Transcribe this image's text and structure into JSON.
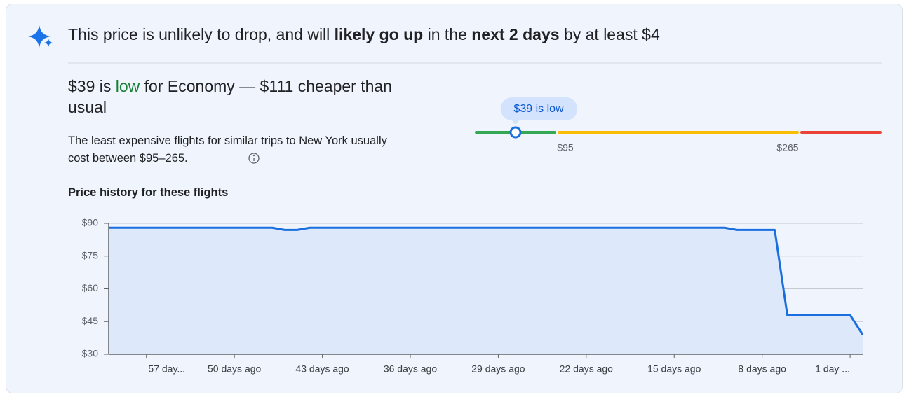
{
  "headline": [
    {
      "text": "This price is unlikely to drop, and will ",
      "bold": false
    },
    {
      "text": "likely go up",
      "bold": true
    },
    {
      "text": " in the ",
      "bold": false
    },
    {
      "text": "next 2 days",
      "bold": true
    },
    {
      "text": " by at least $4",
      "bold": false
    }
  ],
  "summary": [
    {
      "text": "$39 is ",
      "color": "#202124"
    },
    {
      "text": "low",
      "color": "#188038"
    },
    {
      "text": " for Economy — $111 cheaper than usual",
      "color": "#202124"
    }
  ],
  "description": "The least expensive flights for similar trips to New York usually cost between $95–265.",
  "price_range": {
    "marker_label": "$39 is low",
    "tick_labels": [
      "$95",
      "$265"
    ]
  },
  "chart_data": {
    "type": "line",
    "title": "Price history for these flights",
    "x": [
      60,
      47,
      46,
      45,
      44,
      11,
      10,
      7,
      6,
      1,
      0
    ],
    "values": [
      88,
      88,
      87,
      87,
      88,
      88,
      87,
      87,
      48,
      48,
      39
    ],
    "color": "#1a6fdf",
    "fill": "#dde9fb",
    "xlim": [
      60,
      0
    ],
    "xticks": [
      {
        "value": 57,
        "label": "57 day..."
      },
      {
        "value": 50,
        "label": "50 days ago"
      },
      {
        "value": 43,
        "label": "43 days ago"
      },
      {
        "value": 36,
        "label": "36 days ago"
      },
      {
        "value": 29,
        "label": "29 days ago"
      },
      {
        "value": 22,
        "label": "22 days ago"
      },
      {
        "value": 15,
        "label": "15 days ago"
      },
      {
        "value": 8,
        "label": "8 days ago"
      },
      {
        "value": 1,
        "label": "1 day ..."
      }
    ],
    "ylim": [
      30,
      90
    ],
    "yticks": [
      {
        "value": 30,
        "label": "$30"
      },
      {
        "value": 45,
        "label": "$45"
      },
      {
        "value": 60,
        "label": "$60"
      },
      {
        "value": 75,
        "label": "$75"
      },
      {
        "value": 90,
        "label": "$90"
      }
    ],
    "grid": true
  }
}
